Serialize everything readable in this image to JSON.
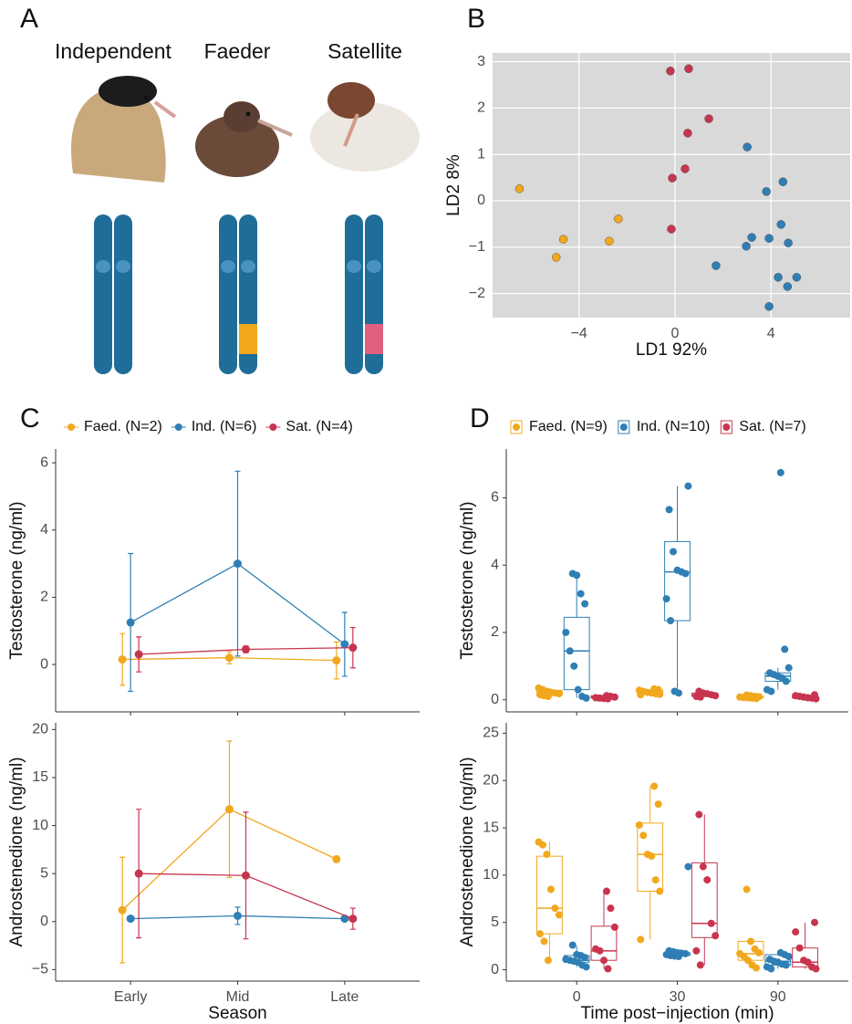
{
  "panel_a": {
    "letter": "A",
    "morphs": [
      "Independent",
      "Faeder",
      "Satellite"
    ]
  },
  "chart_data": [
    {
      "type": "scatter",
      "panel": "B",
      "xlabel": "LD1 92%",
      "ylabel": "LD2 8%",
      "xlim": [
        -7.6,
        7.3
      ],
      "ylim": [
        -2.52,
        3.19
      ],
      "xticks": [
        {
          "value": -4,
          "label": "−4"
        },
        0,
        4
      ],
      "yticks": [
        {
          "value": -2,
          "label": "−2"
        },
        {
          "value": -1,
          "label": "−1"
        },
        0,
        1,
        2,
        3
      ],
      "grid": true,
      "background": "#d9d9d9",
      "series": [
        {
          "color": "#f2a81d",
          "x": [
            -6.48,
            -4.65,
            -4.95,
            -2.74,
            -2.36
          ],
          "values": [
            0.26,
            -0.83,
            -1.22,
            -0.87,
            -0.39
          ]
        },
        {
          "color": "#2f7fb5",
          "x": [
            3.01,
            4.5,
            3.81,
            4.42,
            3.2,
            2.97,
            3.92,
            4.72,
            1.71,
            4.3,
            5.07,
            4.69,
            3.92
          ],
          "values": [
            1.16,
            0.41,
            0.2,
            -0.51,
            -0.79,
            -0.98,
            -0.81,
            -0.91,
            -1.4,
            -1.65,
            -1.65,
            -1.85,
            -2.28
          ]
        },
        {
          "color": "#c8344f",
          "x": [
            -0.19,
            0.57,
            1.41,
            0.53,
            0.42,
            -0.11,
            -0.15
          ],
          "values": [
            2.8,
            2.85,
            1.77,
            1.46,
            0.69,
            0.49,
            -0.61
          ]
        }
      ]
    },
    {
      "type": "line",
      "panel": "C",
      "ylabel": "Testosterone (ng/ml)",
      "ylim": [
        -1.41,
        6.41
      ],
      "yticks": [
        0,
        2,
        4,
        6
      ],
      "series": [
        {
          "name": "Faed. (N=2)",
          "color": "#f2a81d",
          "values": [
            0.15,
            0.2,
            0.12
          ],
          "errors": [
            0.77,
            0.18,
            0.55
          ]
        },
        {
          "name": "Ind. (N=6)",
          "color": "#2f7fb5",
          "values": [
            1.25,
            3.0,
            0.6
          ],
          "errors": [
            2.05,
            2.75,
            0.95
          ]
        },
        {
          "name": "Sat. (N=4)",
          "color": "#c8344f",
          "values": [
            0.3,
            0.45,
            0.5
          ],
          "errors": [
            0.52,
            0.1,
            0.6
          ]
        }
      ]
    },
    {
      "type": "line",
      "ylabel": "Androstenedione (ng/ml)",
      "xlabel": "Season",
      "categories": [
        "Early",
        "Mid",
        "Late"
      ],
      "ylim": [
        -6.2,
        20.7
      ],
      "yticks": [
        {
          "value": -5,
          "label": "−5"
        },
        0,
        5,
        10,
        15,
        20
      ],
      "series": [
        {
          "color": "#f2a81d",
          "values": [
            1.2,
            11.7,
            6.5
          ],
          "errors": [
            5.5,
            7.1,
            null
          ]
        },
        {
          "color": "#2f7fb5",
          "values": [
            0.3,
            0.6,
            0.3
          ],
          "errors": [
            0.2,
            0.9,
            0.2
          ]
        },
        {
          "color": "#c8344f",
          "values": [
            5.0,
            4.8,
            0.3
          ],
          "errors": [
            6.7,
            6.6,
            1.1
          ]
        }
      ]
    },
    {
      "type": "box",
      "panel": "D",
      "ylabel": "Testosterone (ng/ml)",
      "ylim": [
        -0.36,
        7.45
      ],
      "yticks": [
        0,
        2,
        4,
        6
      ],
      "series": [
        {
          "name": "Faed. (N=9)",
          "color": "#f2a81d",
          "boxes": [
            {
              "min": 0.1,
              "q1": 0.15,
              "median": 0.2,
              "q3": 0.28,
              "max": 0.35
            },
            {
              "min": 0.15,
              "q1": 0.18,
              "median": 0.22,
              "q3": 0.28,
              "max": 0.32
            },
            {
              "min": 0.04,
              "q1": 0.06,
              "median": 0.08,
              "q3": 0.1,
              "max": 0.14
            }
          ],
          "points": [
            [
              0.35,
              0.3,
              0.25,
              0.22,
              0.2,
              0.18,
              0.15,
              0.12,
              0.1
            ],
            [
              0.32,
              0.3,
              0.28,
              0.25,
              0.22,
              0.2,
              0.18,
              0.16,
              0.15
            ],
            [
              0.14,
              0.12,
              0.1,
              0.09,
              0.08,
              0.07,
              0.06,
              0.05,
              0.04
            ]
          ]
        },
        {
          "name": "Ind. (N=10)",
          "color": "#2f7fb5",
          "boxes": [
            {
              "min": 0.05,
              "q1": 0.3,
              "median": 1.45,
              "q3": 2.45,
              "max": 3.75
            },
            {
              "min": 0.25,
              "q1": 2.35,
              "median": 3.8,
              "q3": 4.7,
              "max": 6.35
            },
            {
              "min": 0.3,
              "q1": 0.55,
              "median": 0.7,
              "q3": 0.8,
              "max": 0.95
            }
          ],
          "points": [
            [
              3.75,
              3.7,
              3.15,
              2.85,
              2.0,
              1.45,
              1.0,
              0.3,
              0.1,
              0.05
            ],
            [
              6.35,
              5.65,
              4.4,
              3.85,
              3.8,
              3.75,
              3.0,
              2.35,
              0.25,
              0.2
            ],
            [
              6.75,
              1.5,
              0.95,
              0.8,
              0.75,
              0.7,
              0.65,
              0.55,
              0.3,
              0.25
            ]
          ]
        },
        {
          "name": "Sat. (N=7)",
          "color": "#c8344f",
          "boxes": [
            {
              "min": 0.02,
              "q1": 0.05,
              "median": 0.08,
              "q3": 0.12,
              "max": 0.15
            },
            {
              "min": 0.08,
              "q1": 0.1,
              "median": 0.15,
              "q3": 0.2,
              "max": 0.25
            },
            {
              "min": 0.03,
              "q1": 0.05,
              "median": 0.08,
              "q3": 0.12,
              "max": 0.15
            }
          ],
          "points": [
            [
              0.12,
              0.1,
              0.08,
              0.06,
              0.05,
              0.04,
              0.03
            ],
            [
              0.25,
              0.2,
              0.18,
              0.15,
              0.12,
              0.1,
              0.08
            ],
            [
              0.15,
              0.12,
              0.1,
              0.08,
              0.06,
              0.05,
              0.03
            ]
          ]
        }
      ]
    },
    {
      "type": "box",
      "ylabel": "Androstenedione (ng/ml)",
      "xlabel": "Time post−injection (min)",
      "categories": [
        "0",
        "30",
        "90"
      ],
      "ylim": [
        -1.2,
        26.1
      ],
      "yticks": [
        0,
        5,
        10,
        15,
        20,
        25
      ],
      "series": [
        {
          "color": "#f2a81d",
          "boxes": [
            {
              "min": 1.0,
              "q1": 3.8,
              "median": 6.5,
              "q3": 12,
              "max": 13.5
            },
            {
              "min": 3.2,
              "q1": 8.3,
              "median": 12.2,
              "q3": 15.5,
              "max": 19.4
            },
            {
              "min": 0.2,
              "q1": 1.0,
              "median": 1.7,
              "q3": 3.0,
              "max": 3.0
            }
          ],
          "points": [
            [
              13.5,
              13.2,
              12.2,
              8.5,
              6.5,
              5.8,
              3.8,
              3.0,
              1.0
            ],
            [
              19.4,
              17.5,
              15.3,
              14.2,
              12.2,
              12.0,
              9.5,
              8.3,
              3.2
            ],
            [
              8.5,
              3.0,
              2.2,
              1.8,
              1.7,
              1.4,
              1.0,
              0.5,
              0.2
            ]
          ]
        },
        {
          "color": "#2f7fb5",
          "boxes": [
            {
              "min": 0.3,
              "q1": 0.8,
              "median": 1.0,
              "q3": 1.5,
              "max": 2.5
            },
            {
              "min": 1.4,
              "q1": 1.5,
              "median": 1.7,
              "q3": 1.8,
              "max": 2.0
            },
            {
              "min": 0.1,
              "q1": 0.5,
              "median": 0.9,
              "q3": 1.6,
              "max": 1.8
            }
          ],
          "points": [
            [
              2.6,
              1.6,
              1.5,
              1.3,
              1.1,
              1.0,
              0.9,
              0.8,
              0.5,
              0.3
            ],
            [
              10.9,
              2.0,
              1.9,
              1.8,
              1.75,
              1.7,
              1.6,
              1.5,
              1.45,
              1.4
            ],
            [
              1.8,
              1.6,
              1.4,
              1.1,
              0.9,
              0.8,
              0.6,
              0.5,
              0.3,
              0.1
            ]
          ]
        },
        {
          "color": "#c8344f",
          "boxes": [
            {
              "min": 0.1,
              "q1": 1.0,
              "median": 2.0,
              "q3": 4.6,
              "max": 8.3
            },
            {
              "min": 0.5,
              "q1": 3.4,
              "median": 4.9,
              "q3": 11.3,
              "max": 16.4
            },
            {
              "min": 0.1,
              "q1": 0.3,
              "median": 0.8,
              "q3": 2.3,
              "max": 5.0
            }
          ],
          "points": [
            [
              8.3,
              6.5,
              4.5,
              2.2,
              2.0,
              1.0,
              0.1
            ],
            [
              16.4,
              10.9,
              9.5,
              4.9,
              3.6,
              2.0,
              0.5
            ],
            [
              5.0,
              4.0,
              2.3,
              1.0,
              0.8,
              0.3,
              0.1
            ]
          ]
        }
      ]
    }
  ]
}
